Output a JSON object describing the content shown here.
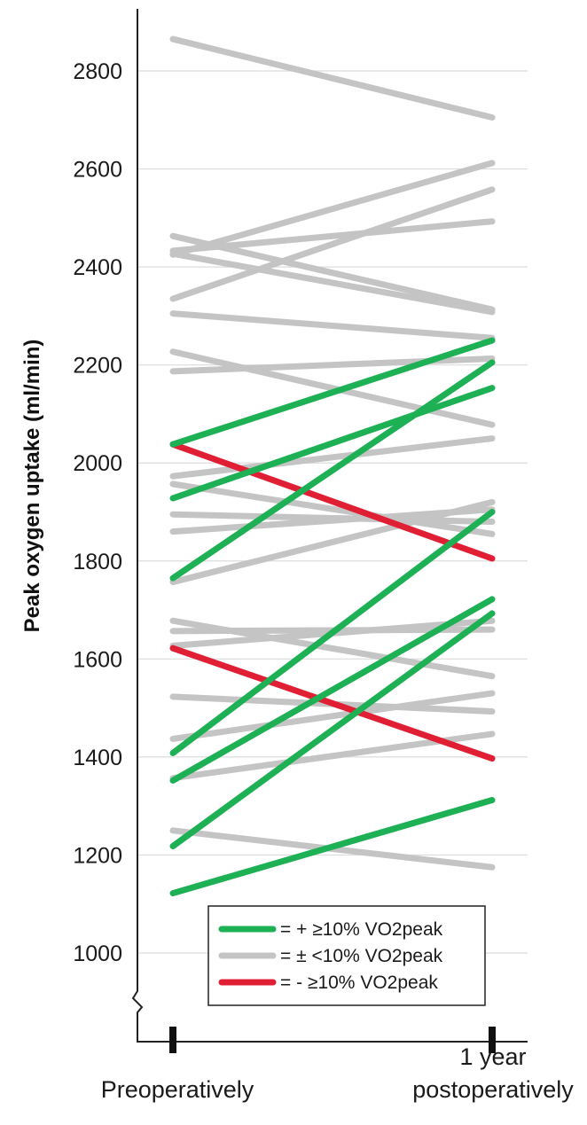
{
  "chart_data": {
    "type": "line",
    "title": "",
    "ylabel": "Peak oxygen uptake (ml/min)",
    "xlabel": "",
    "categories": [
      "Preoperatively",
      [
        "1 year",
        "postoperatively"
      ]
    ],
    "ylim": [
      1000,
      2900
    ],
    "yticks": [
      1000,
      1200,
      1400,
      1600,
      1800,
      2000,
      2200,
      2400,
      2600,
      2800
    ],
    "grid": true,
    "legend_position": "bottom-right",
    "colors": {
      "increase": "#1db054",
      "stable": "#c4c4c4",
      "decrease": "#e01e34"
    },
    "legend": [
      {
        "group": "increase",
        "label": "= + ≥10% VO2peak"
      },
      {
        "group": "stable",
        "label": "= ± <10% VO2peak"
      },
      {
        "group": "decrease",
        "label": "= - ≥10% VO2peak"
      }
    ],
    "series": [
      {
        "group": "stable",
        "values": [
          2865,
          2705
        ]
      },
      {
        "group": "stable",
        "values": [
          2425,
          2612
        ]
      },
      {
        "group": "stable",
        "values": [
          2335,
          2558
        ]
      },
      {
        "group": "stable",
        "values": [
          2433,
          2493
        ]
      },
      {
        "group": "stable",
        "values": [
          2463,
          2313
        ]
      },
      {
        "group": "stable",
        "values": [
          2427,
          2308
        ]
      },
      {
        "group": "stable",
        "values": [
          2305,
          2255
        ]
      },
      {
        "group": "stable",
        "values": [
          2187,
          2213
        ]
      },
      {
        "group": "stable",
        "values": [
          2227,
          2078
        ]
      },
      {
        "group": "stable",
        "values": [
          1973,
          2050
        ]
      },
      {
        "group": "stable",
        "values": [
          1957,
          1855
        ]
      },
      {
        "group": "stable",
        "values": [
          1895,
          1880
        ]
      },
      {
        "group": "stable",
        "values": [
          1860,
          1905
        ]
      },
      {
        "group": "stable",
        "values": [
          1757,
          1920
        ]
      },
      {
        "group": "stable",
        "values": [
          1678,
          1565
        ]
      },
      {
        "group": "stable",
        "values": [
          1657,
          1660
        ]
      },
      {
        "group": "stable",
        "values": [
          1627,
          1678
        ]
      },
      {
        "group": "stable",
        "values": [
          1523,
          1493
        ]
      },
      {
        "group": "stable",
        "values": [
          1437,
          1530
        ]
      },
      {
        "group": "stable",
        "values": [
          1357,
          1447
        ]
      },
      {
        "group": "stable",
        "values": [
          1250,
          1175
        ]
      },
      {
        "group": "decrease",
        "values": [
          2038,
          1805
        ]
      },
      {
        "group": "decrease",
        "values": [
          1622,
          1397
        ]
      },
      {
        "group": "increase",
        "values": [
          2038,
          2250
        ]
      },
      {
        "group": "increase",
        "values": [
          1928,
          2153
        ]
      },
      {
        "group": "increase",
        "values": [
          1765,
          2205
        ]
      },
      {
        "group": "increase",
        "values": [
          1408,
          1900
        ]
      },
      {
        "group": "increase",
        "values": [
          1352,
          1722
        ]
      },
      {
        "group": "increase",
        "values": [
          1218,
          1693
        ]
      },
      {
        "group": "increase",
        "values": [
          1122,
          1312
        ]
      }
    ]
  }
}
